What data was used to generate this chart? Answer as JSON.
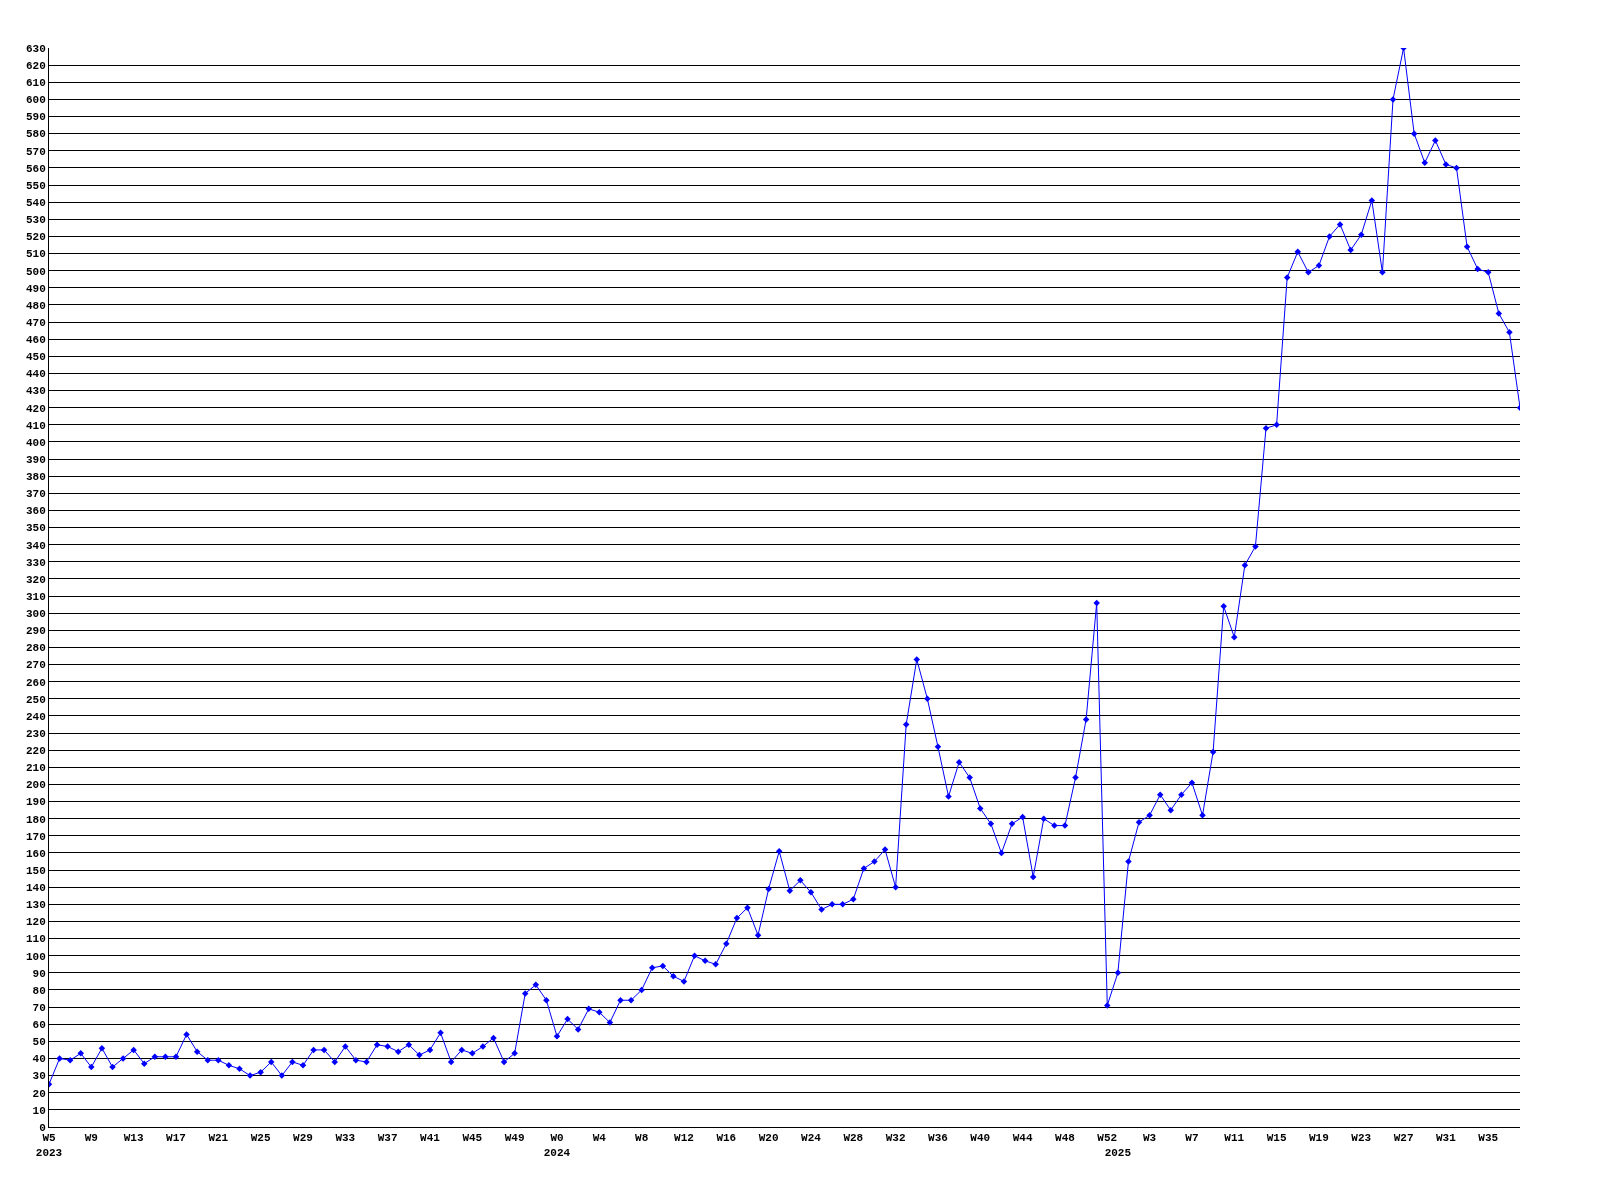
{
  "chart_data": {
    "type": "line",
    "categories": [
      "W5\n2023",
      null,
      null,
      null,
      "W9",
      null,
      null,
      null,
      "W13",
      null,
      null,
      null,
      "W17",
      null,
      null,
      null,
      "W21",
      null,
      null,
      null,
      "W25",
      null,
      null,
      null,
      "W29",
      null,
      null,
      null,
      "W33",
      null,
      null,
      null,
      "W37",
      null,
      null,
      null,
      "W41",
      null,
      null,
      null,
      "W45",
      null,
      null,
      null,
      "W49",
      null,
      null,
      null,
      "W0\n2024",
      null,
      null,
      null,
      "W4",
      null,
      null,
      null,
      "W8",
      null,
      null,
      null,
      "W12",
      null,
      null,
      null,
      "W16",
      null,
      null,
      null,
      "W20",
      null,
      null,
      null,
      "W24",
      null,
      null,
      null,
      "W28",
      null,
      null,
      null,
      "W32",
      null,
      null,
      null,
      "W36",
      null,
      null,
      null,
      "W40",
      null,
      null,
      null,
      "W44",
      null,
      null,
      null,
      "W48",
      null,
      null,
      null,
      "W52",
      "\n2025",
      null,
      null,
      "W3",
      null,
      null,
      null,
      "W7",
      null,
      null,
      null,
      "W11",
      null,
      null,
      null,
      "W15",
      null,
      null,
      null,
      "W19",
      null,
      null,
      null,
      "W23",
      null,
      null,
      null,
      "W27",
      null,
      null,
      null,
      "W31",
      null,
      null,
      null,
      "W35",
      null,
      null,
      null
    ],
    "series": [
      {
        "color": "#0000ff",
        "values": [
          25,
          40,
          39,
          43,
          35,
          46,
          35,
          40,
          45,
          37,
          41,
          41,
          41,
          54,
          44,
          39,
          39,
          36,
          34,
          30,
          32,
          38,
          30,
          38,
          36,
          45,
          45,
          38,
          47,
          39,
          38,
          48,
          47,
          44,
          48,
          42,
          45,
          55,
          38,
          45,
          43,
          47,
          52,
          38,
          43,
          78,
          83,
          74,
          53,
          63,
          57,
          69,
          67,
          61,
          74,
          74,
          80,
          93,
          94,
          88,
          85,
          100,
          97,
          95,
          107,
          122,
          128,
          112,
          139,
          161,
          138,
          144,
          137,
          127,
          130,
          130,
          133,
          151,
          155,
          162,
          140,
          235,
          273,
          250,
          222,
          193,
          213,
          204,
          186,
          177,
          160,
          177,
          181,
          146,
          180,
          176,
          176,
          204,
          238,
          306,
          71,
          90,
          155,
          178,
          182,
          194,
          185,
          194,
          201,
          182,
          219,
          304,
          286,
          328,
          339,
          408,
          410,
          496,
          511,
          499,
          503,
          520,
          527,
          512,
          521,
          541,
          499,
          600,
          630,
          580,
          563,
          576,
          562,
          560,
          514,
          501,
          499,
          475,
          464,
          420
        ]
      }
    ],
    "ylim": [
      0,
      630
    ],
    "yticks": [
      0,
      10,
      20,
      30,
      40,
      50,
      60,
      70,
      80,
      90,
      100,
      110,
      120,
      130,
      140,
      150,
      160,
      170,
      180,
      190,
      200,
      210,
      220,
      230,
      240,
      250,
      260,
      270,
      280,
      290,
      300,
      310,
      320,
      330,
      340,
      350,
      360,
      370,
      380,
      390,
      400,
      410,
      420,
      430,
      440,
      450,
      460,
      470,
      480,
      490,
      500,
      510,
      520,
      530,
      540,
      550,
      560,
      570,
      580,
      590,
      600,
      610,
      620,
      630
    ],
    "grid": "y",
    "marker": "diamond",
    "line_style": "solid"
  }
}
